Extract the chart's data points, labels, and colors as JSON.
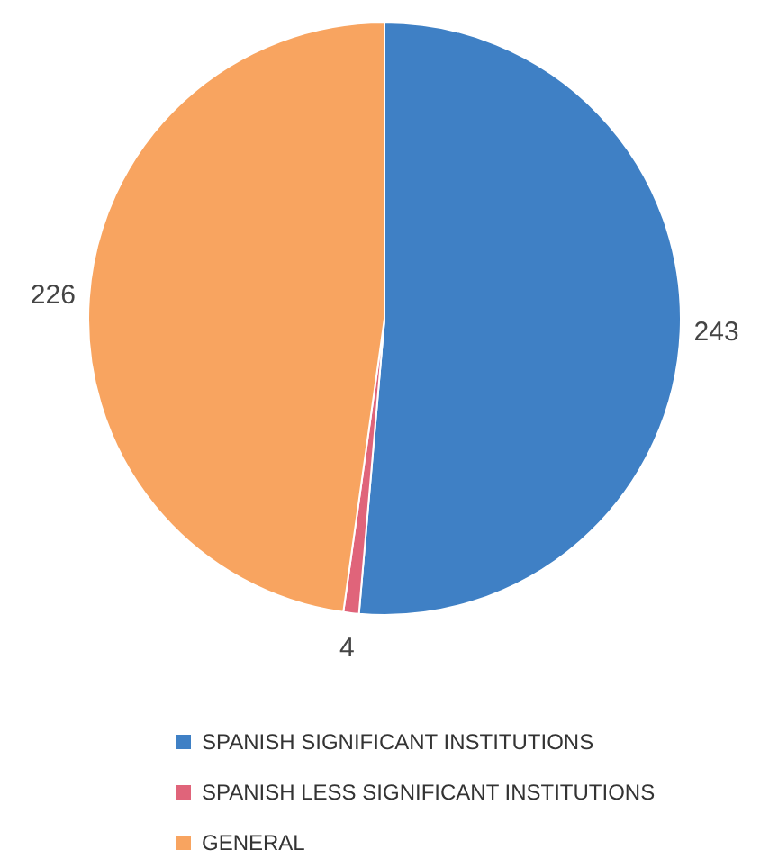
{
  "chart_data": {
    "type": "pie",
    "categories": [
      "SPANISH SIGNIFICANT INSTITUTIONS",
      "SPANISH LESS SIGNIFICANT INSTITUTIONS",
      "GENERAL"
    ],
    "values": [
      243,
      4,
      226
    ],
    "colors": [
      "#3f80c5",
      "#e0647a",
      "#f8a460"
    ],
    "data_labels": true,
    "legend": "bottom"
  }
}
